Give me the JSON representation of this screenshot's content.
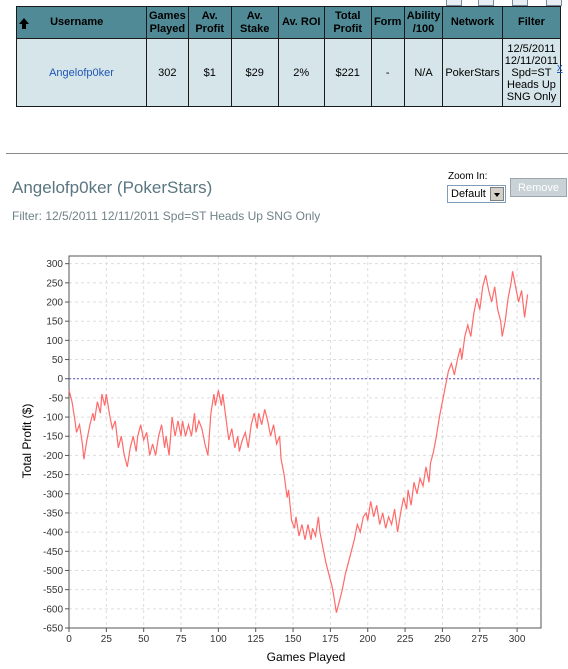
{
  "table": {
    "headers": {
      "username": "Username",
      "games_played": [
        "Games",
        "Played"
      ],
      "av_profit": [
        "Av.",
        "Profit"
      ],
      "av_stake": [
        "Av.",
        "Stake"
      ],
      "av_roi": "Av. ROI",
      "total_profit": [
        "Total",
        "Profit"
      ],
      "form": "Form",
      "ability": [
        "Ability",
        "/100"
      ],
      "network": "Network",
      "filter": "Filter"
    },
    "row": {
      "username": "Angelofp0ker",
      "games_played": "302",
      "av_profit": "$1",
      "av_stake": "$29",
      "av_roi": "2%",
      "total_profit": "$221",
      "form": "-",
      "ability": "N/A",
      "network": "PokerStars",
      "filter_lines": [
        "12/5/2011",
        "12/11/2011",
        "Spd=ST",
        "Heads Up",
        "SNG Only"
      ],
      "remove_x": "x"
    }
  },
  "player_title": "Angelofp0ker (PokerStars)",
  "filter_text": "Filter: 12/5/2011 12/11/2011 Spd=ST Heads Up SNG Only",
  "zoom": {
    "label": "Zoom In:",
    "selected": "Default"
  },
  "remove_button": "Remove",
  "chart_data": {
    "type": "line",
    "xlabel": "Games Played",
    "ylabel": "Total Profit ($)",
    "xlim": [
      0,
      316
    ],
    "ylim": [
      -650,
      320
    ],
    "xticks": [
      0,
      25,
      50,
      75,
      100,
      125,
      150,
      175,
      200,
      225,
      250,
      275,
      300
    ],
    "yticks": [
      300,
      250,
      200,
      150,
      100,
      50,
      0,
      -50,
      -100,
      -150,
      -200,
      -250,
      -300,
      -350,
      -400,
      -450,
      -500,
      -550,
      -600,
      -650
    ],
    "grid": true,
    "zero_line": true,
    "line_color": "#ff6a6a",
    "series": [
      {
        "points": [
          [
            0,
            -30
          ],
          [
            2,
            -60
          ],
          [
            4,
            -110
          ],
          [
            5,
            -140
          ],
          [
            7,
            -120
          ],
          [
            9,
            -170
          ],
          [
            10,
            -210
          ],
          [
            12,
            -160
          ],
          [
            14,
            -120
          ],
          [
            16,
            -90
          ],
          [
            17,
            -110
          ],
          [
            19,
            -60
          ],
          [
            21,
            -90
          ],
          [
            22,
            -40
          ],
          [
            24,
            -70
          ],
          [
            25,
            -40
          ],
          [
            27,
            -90
          ],
          [
            29,
            -130
          ],
          [
            31,
            -110
          ],
          [
            33,
            -180
          ],
          [
            35,
            -150
          ],
          [
            37,
            -200
          ],
          [
            39,
            -230
          ],
          [
            41,
            -180
          ],
          [
            43,
            -150
          ],
          [
            45,
            -190
          ],
          [
            46,
            -150
          ],
          [
            48,
            -120
          ],
          [
            50,
            -160
          ],
          [
            52,
            -140
          ],
          [
            54,
            -200
          ],
          [
            56,
            -170
          ],
          [
            58,
            -200
          ],
          [
            60,
            -150
          ],
          [
            62,
            -120
          ],
          [
            64,
            -180
          ],
          [
            65,
            -150
          ],
          [
            67,
            -200
          ],
          [
            69,
            -100
          ],
          [
            71,
            -150
          ],
          [
            73,
            -110
          ],
          [
            75,
            -150
          ],
          [
            76,
            -110
          ],
          [
            78,
            -150
          ],
          [
            80,
            -120
          ],
          [
            82,
            -150
          ],
          [
            84,
            -90
          ],
          [
            85,
            -140
          ],
          [
            87,
            -110
          ],
          [
            89,
            -130
          ],
          [
            91,
            -170
          ],
          [
            93,
            -200
          ],
          [
            95,
            -90
          ],
          [
            97,
            -40
          ],
          [
            98,
            -70
          ],
          [
            100,
            -30
          ],
          [
            102,
            -70
          ],
          [
            103,
            -40
          ],
          [
            105,
            -100
          ],
          [
            107,
            -160
          ],
          [
            109,
            -130
          ],
          [
            111,
            -180
          ],
          [
            113,
            -150
          ],
          [
            114,
            -190
          ],
          [
            116,
            -160
          ],
          [
            118,
            -140
          ],
          [
            120,
            -180
          ],
          [
            122,
            -120
          ],
          [
            124,
            -90
          ],
          [
            126,
            -130
          ],
          [
            127,
            -90
          ],
          [
            129,
            -120
          ],
          [
            131,
            -80
          ],
          [
            133,
            -110
          ],
          [
            135,
            -150
          ],
          [
            137,
            -120
          ],
          [
            139,
            -170
          ],
          [
            141,
            -150
          ],
          [
            142,
            -210
          ],
          [
            144,
            -250
          ],
          [
            146,
            -310
          ],
          [
            147,
            -290
          ],
          [
            149,
            -370
          ],
          [
            151,
            -390
          ],
          [
            152,
            -360
          ],
          [
            154,
            -410
          ],
          [
            156,
            -380
          ],
          [
            158,
            -420
          ],
          [
            160,
            -380
          ],
          [
            162,
            -420
          ],
          [
            163,
            -390
          ],
          [
            165,
            -410
          ],
          [
            167,
            -360
          ],
          [
            168,
            -400
          ],
          [
            170,
            -440
          ],
          [
            172,
            -480
          ],
          [
            174,
            -510
          ],
          [
            176,
            -540
          ],
          [
            177,
            -560
          ],
          [
            179,
            -610
          ],
          [
            181,
            -580
          ],
          [
            183,
            -550
          ],
          [
            185,
            -510
          ],
          [
            187,
            -480
          ],
          [
            189,
            -450
          ],
          [
            191,
            -420
          ],
          [
            193,
            -380
          ],
          [
            195,
            -400
          ],
          [
            197,
            -360
          ],
          [
            199,
            -350
          ],
          [
            200,
            -370
          ],
          [
            202,
            -320
          ],
          [
            204,
            -360
          ],
          [
            206,
            -330
          ],
          [
            208,
            -380
          ],
          [
            210,
            -350
          ],
          [
            212,
            -390
          ],
          [
            214,
            -360
          ],
          [
            216,
            -380
          ],
          [
            218,
            -340
          ],
          [
            220,
            -400
          ],
          [
            222,
            -350
          ],
          [
            224,
            -310
          ],
          [
            226,
            -340
          ],
          [
            227,
            -290
          ],
          [
            229,
            -330
          ],
          [
            231,
            -270
          ],
          [
            233,
            -300
          ],
          [
            235,
            -260
          ],
          [
            237,
            -280
          ],
          [
            239,
            -230
          ],
          [
            241,
            -270
          ],
          [
            242,
            -220
          ],
          [
            244,
            -190
          ],
          [
            246,
            -150
          ],
          [
            248,
            -100
          ],
          [
            250,
            -60
          ],
          [
            252,
            -20
          ],
          [
            254,
            20
          ],
          [
            256,
            40
          ],
          [
            258,
            10
          ],
          [
            260,
            50
          ],
          [
            262,
            80
          ],
          [
            263,
            50
          ],
          [
            265,
            110
          ],
          [
            267,
            140
          ],
          [
            269,
            110
          ],
          [
            271,
            170
          ],
          [
            273,
            210
          ],
          [
            275,
            180
          ],
          [
            277,
            240
          ],
          [
            279,
            270
          ],
          [
            281,
            230
          ],
          [
            283,
            200
          ],
          [
            285,
            240
          ],
          [
            287,
            180
          ],
          [
            289,
            150
          ],
          [
            290,
            110
          ],
          [
            292,
            150
          ],
          [
            294,
            210
          ],
          [
            296,
            250
          ],
          [
            297,
            280
          ],
          [
            299,
            240
          ],
          [
            301,
            200
          ],
          [
            303,
            230
          ],
          [
            305,
            160
          ],
          [
            307,
            220
          ]
        ]
      }
    ]
  }
}
